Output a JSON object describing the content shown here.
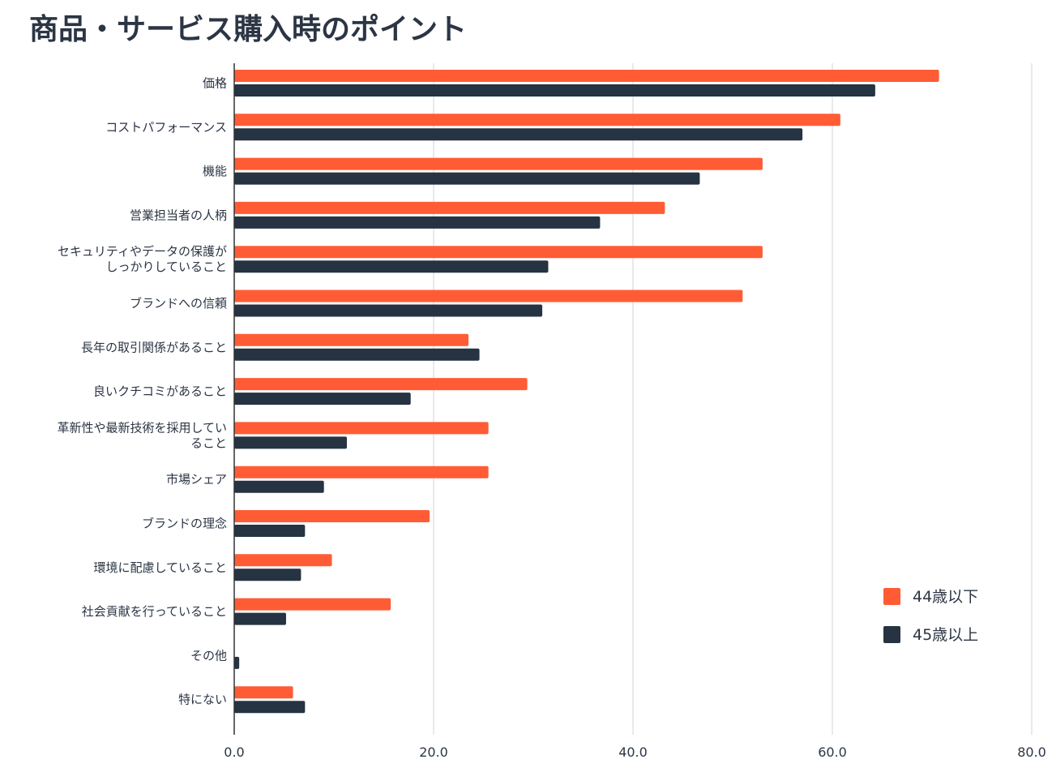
{
  "chart_data": {
    "type": "bar",
    "orientation": "horizontal",
    "title": "商品・サービス購入時のポイント",
    "xlabel": "",
    "ylabel": "",
    "xlim": [
      0,
      80
    ],
    "xticks": [
      "0.0",
      "20.0",
      "40.0",
      "60.0",
      "80.0"
    ],
    "xtick_values": [
      0,
      20,
      40,
      60,
      80
    ],
    "grid": true,
    "legend_position": "bottom-right",
    "categories": [
      "価格",
      "コストパフォーマンス",
      "機能",
      "営業担当者の人柄",
      "セキュリティやデータの保護が しっかりしていること",
      "ブランドへの信頼",
      "長年の取引関係があること",
      "良いクチコミがあること",
      "革新性や最新技術を採用してい ること",
      "市場シェア",
      "ブランドの理念",
      "環境に配慮していること",
      "社会貢献を行っていること",
      "その他",
      "特にない"
    ],
    "category_lines": [
      [
        "価格"
      ],
      [
        "コストパフォーマンス"
      ],
      [
        "機能"
      ],
      [
        "営業担当者の人柄"
      ],
      [
        "セキュリティやデータの保護が",
        "しっかりしていること"
      ],
      [
        "ブランドへの信頼"
      ],
      [
        "長年の取引関係があること"
      ],
      [
        "良いクチコミがあること"
      ],
      [
        "革新性や最新技術を採用してい",
        "ること"
      ],
      [
        "市場シェア"
      ],
      [
        "ブランドの理念"
      ],
      [
        "環境に配慮していること"
      ],
      [
        "社会貢献を行っていること"
      ],
      [
        "その他"
      ],
      [
        "特にない"
      ]
    ],
    "series": [
      {
        "name": "44歳以下",
        "color": "#ff5c35",
        "values": [
          70.7,
          60.8,
          53.0,
          43.2,
          53.0,
          51.0,
          23.5,
          29.4,
          25.5,
          25.5,
          19.6,
          9.8,
          15.7,
          0.0,
          5.9
        ]
      },
      {
        "name": "45歳以上",
        "color": "#253342",
        "values": [
          64.3,
          57.0,
          46.7,
          36.7,
          31.5,
          30.9,
          24.6,
          17.7,
          11.3,
          9.0,
          7.1,
          6.7,
          5.2,
          0.5,
          7.1
        ]
      }
    ]
  }
}
